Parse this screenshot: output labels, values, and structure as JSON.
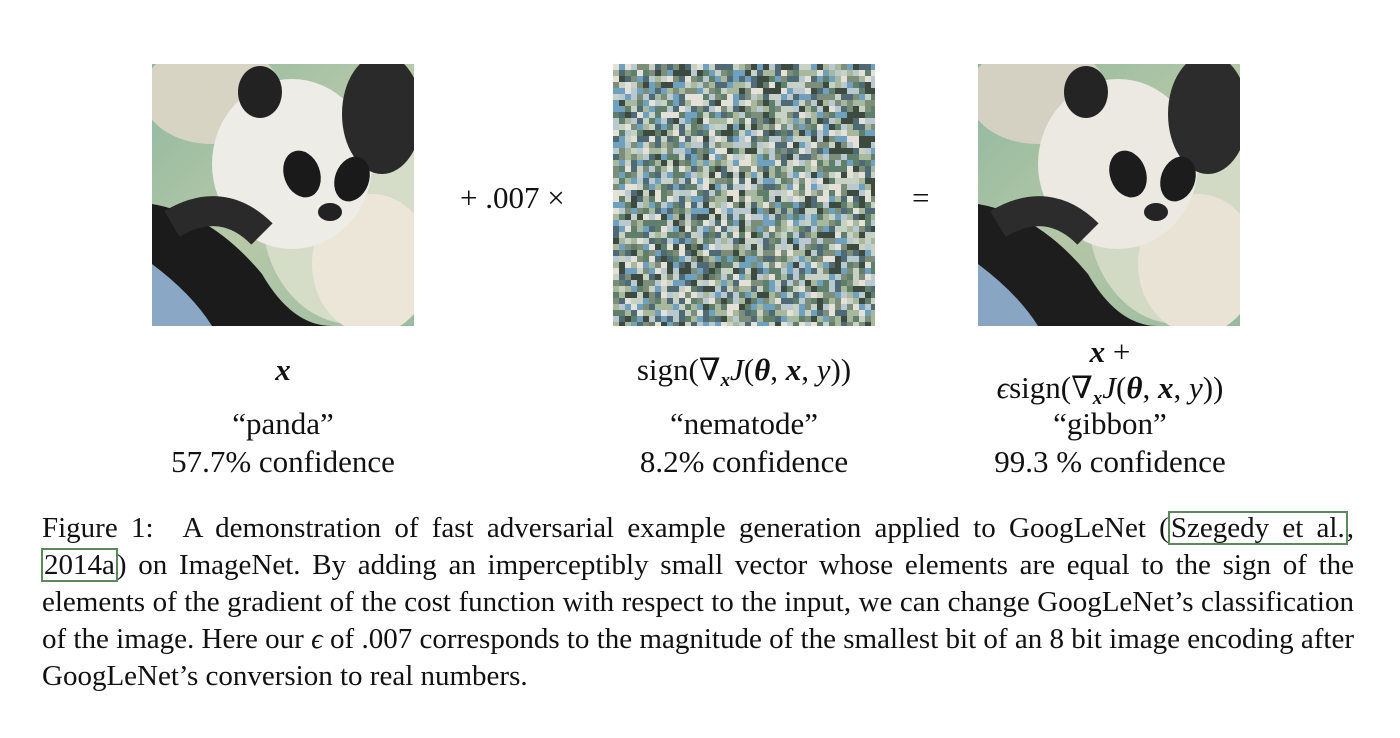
{
  "figure": {
    "panel_left": {
      "image_name": "panda-photo",
      "math_var": "x",
      "label": "“panda”",
      "confidence": "57.7% confidence"
    },
    "operator_plus": "+ .007 ×",
    "panel_middle": {
      "image_name": "adversarial-noise",
      "math_sign": "sign(",
      "math_nabla": "∇",
      "math_sub": "x",
      "math_J": "J",
      "math_open": "(",
      "math_theta": "θ",
      "math_comma1": ", ",
      "math_x": "x",
      "math_comma2": ", ",
      "math_y": "y",
      "math_close": "))",
      "label": "“nematode”",
      "confidence": "8.2% confidence"
    },
    "operator_equals": "=",
    "panel_right": {
      "image_name": "panda-adversarial-photo",
      "line1_x": "x",
      "line1_plus": " +",
      "line2_eps": "ϵ",
      "line2_sign": "sign(",
      "line2_nabla": "∇",
      "line2_sub": "x",
      "line2_J": "J",
      "line2_open": "(",
      "line2_theta": "θ",
      "line2_comma1": ", ",
      "line2_x": "x",
      "line2_comma2": ", ",
      "line2_y": "y",
      "line2_close": "))",
      "label": "“gibbon”",
      "confidence": "99.3 % confidence"
    }
  },
  "caption": {
    "prefix": "Figure 1: A demonstration of fast adversarial example generation applied to GoogLeNet (",
    "cite_author": "Szegedy et al.",
    "cite_sep": ", ",
    "cite_year": "2014a",
    "text_after_cite": ") on ImageNet. By adding an imperceptibly small vector whose elements are equal to the sign of the elements of the gradient of the cost function with respect to the input, we can change GoogLeNet’s classification of the image. Here our ",
    "epsilon": "ϵ",
    "text_end": " of .007 corresponds to the magnitude of the smallest bit of an 8 bit image encoding after GoogLeNet’s conversion to real numbers."
  },
  "colors": {
    "citation_box": "#5a8a5a",
    "text": "#111111"
  }
}
